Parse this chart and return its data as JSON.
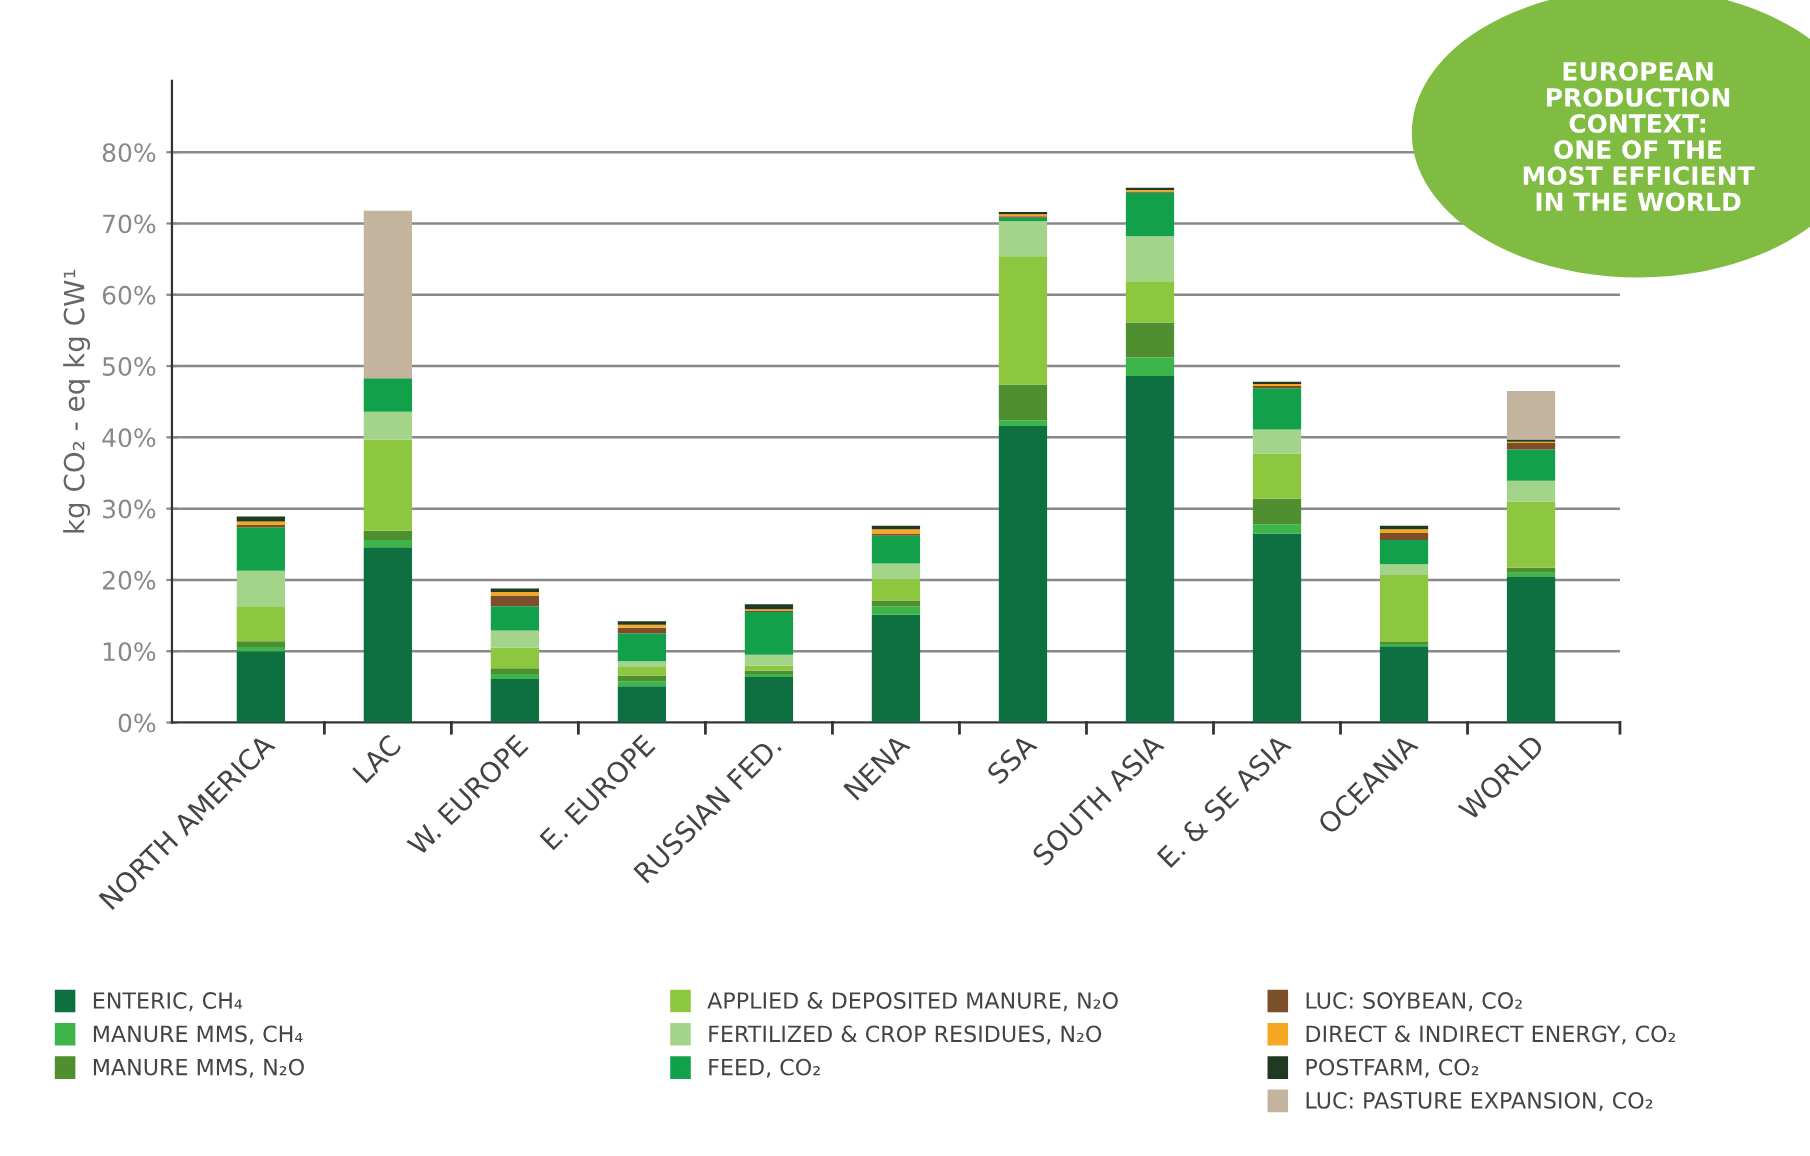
{
  "chart_data": {
    "type": "bar",
    "stacked": true,
    "ylabel": "kg CO₂ - eq kg CW¹",
    "categories": [
      "NORTH AMERICA",
      "LAC",
      "W. EUROPE",
      "E. EUROPE",
      "RUSSIAN FED.",
      "NENA",
      "SSA",
      "SOUTH ASIA",
      "E. & SE ASIA",
      "OCEANIA",
      "WORLD"
    ],
    "series": [
      {
        "name": "ENTERIC, CH₄",
        "color": "#0e7040",
        "values": [
          10.0,
          24.6,
          6.1,
          5.1,
          6.4,
          15.1,
          41.6,
          48.6,
          26.5,
          10.7,
          20.4
        ]
      },
      {
        "name": "MANURE MMS, CH₄",
        "color": "#3db54a",
        "values": [
          0.6,
          1.0,
          0.7,
          0.7,
          0.4,
          1.2,
          0.8,
          2.6,
          1.3,
          0.3,
          0.6
        ]
      },
      {
        "name": "MANURE MMS, N₂O",
        "color": "#4f8f2f",
        "values": [
          0.8,
          1.3,
          0.8,
          0.8,
          0.5,
          0.8,
          5.0,
          4.9,
          3.6,
          0.3,
          0.7
        ]
      },
      {
        "name": "APPLIED & DEPOSITED MANURE, N₂O",
        "color": "#8dc63f",
        "values": [
          4.9,
          12.8,
          2.9,
          1.2,
          0.7,
          3.1,
          18.0,
          5.8,
          6.3,
          9.4,
          9.3
        ]
      },
      {
        "name": "FERTILIZED & CROP RESIDUES, N₂O",
        "color": "#a3d48a",
        "values": [
          5.0,
          3.9,
          2.4,
          0.8,
          1.5,
          2.1,
          4.9,
          6.3,
          3.4,
          1.5,
          2.9
        ]
      },
      {
        "name": "FEED, CO₂",
        "color": "#13a04b",
        "values": [
          6.1,
          4.7,
          3.4,
          3.9,
          6.0,
          3.9,
          0.5,
          6.1,
          5.8,
          3.4,
          4.4
        ]
      },
      {
        "name": "LUC: SOYBEAN, CO₂",
        "color": "#7b4f2a",
        "values": [
          0.3,
          0,
          1.5,
          0.8,
          0.2,
          0.3,
          0.2,
          0.2,
          0.3,
          1.0,
          0.9
        ]
      },
      {
        "name": "DIRECT & INDIRECT ENERGY, CO₂",
        "color": "#f7a823",
        "values": [
          0.5,
          0,
          0.5,
          0.4,
          0.2,
          0.6,
          0.3,
          0.2,
          0.3,
          0.5,
          0.2
        ]
      },
      {
        "name": "POSTFARM, CO₂",
        "color": "#1f3a20",
        "values": [
          0.7,
          0,
          0.5,
          0.5,
          0.7,
          0.5,
          0.3,
          0.3,
          0.3,
          0.5,
          0.3
        ]
      },
      {
        "name": "LUC: PASTURE EXPANSION, CO₂",
        "color": "#c4b49e",
        "values": [
          0,
          23.5,
          0,
          0,
          0,
          0,
          0,
          0,
          0,
          0,
          6.8
        ]
      }
    ],
    "ylim": [
      0,
      90
    ],
    "yticks": [
      {
        "value": 0,
        "label": "0%"
      },
      {
        "value": 10,
        "label": "10%"
      },
      {
        "value": 20,
        "label": "20%"
      },
      {
        "value": 30,
        "label": "30%"
      },
      {
        "value": 40,
        "label": "40%"
      },
      {
        "value": 50,
        "label": "50%"
      },
      {
        "value": 60,
        "label": "60%"
      },
      {
        "value": 70,
        "label": "70%"
      },
      {
        "value": 80,
        "label": "80%"
      }
    ],
    "grid": "y",
    "legend": "bottom",
    "annotations": [
      "EUROPEAN\nPRODUCTION\nCONTEXT:\nONE OF THE\nMOST EFFICIENT\nIN THE WORLD"
    ]
  }
}
